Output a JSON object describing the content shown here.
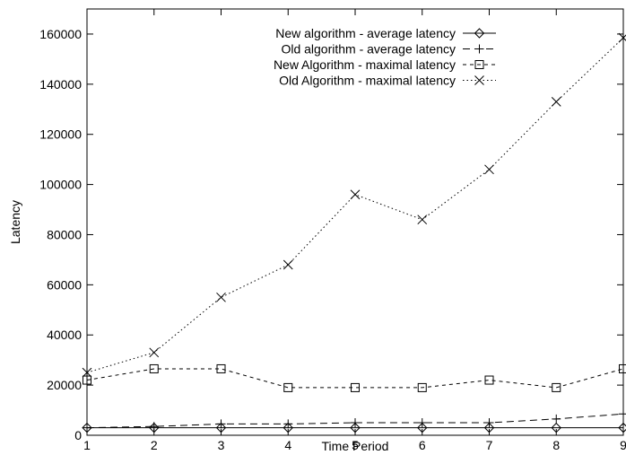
{
  "chart_data": {
    "type": "line",
    "title": "",
    "xlabel": "Time Period",
    "ylabel": "Latency",
    "xlim": [
      1,
      9
    ],
    "ylim": [
      0,
      170000
    ],
    "xticks": [
      1,
      2,
      3,
      4,
      5,
      6,
      7,
      8,
      9
    ],
    "yticks": [
      0,
      20000,
      40000,
      60000,
      80000,
      100000,
      120000,
      140000,
      160000
    ],
    "grid": false,
    "legend_position": "top-right",
    "x": [
      1,
      2,
      3,
      4,
      5,
      6,
      7,
      8,
      9
    ],
    "series": [
      {
        "name": "New algorithm - average latency",
        "marker": "diamond",
        "line_style": "solid",
        "values": [
          3000,
          3000,
          3000,
          3000,
          3000,
          3000,
          3000,
          3000,
          3000
        ]
      },
      {
        "name": "Old algorithm - average latency",
        "marker": "plus",
        "line_style": "dashed",
        "values": [
          3000,
          3500,
          4500,
          4500,
          5000,
          5000,
          5000,
          6500,
          8500
        ]
      },
      {
        "name": "New Algorithm - maximal latency",
        "marker": "square",
        "line_style": "short-dashed",
        "values": [
          22000,
          26500,
          26500,
          19000,
          19000,
          19000,
          22000,
          19000,
          26500
        ]
      },
      {
        "name": "Old Algorithm - maximal latency",
        "marker": "cross",
        "line_style": "dotted",
        "values": [
          25000,
          33000,
          55000,
          68000,
          96000,
          86000,
          106000,
          133000,
          158500
        ]
      }
    ]
  }
}
